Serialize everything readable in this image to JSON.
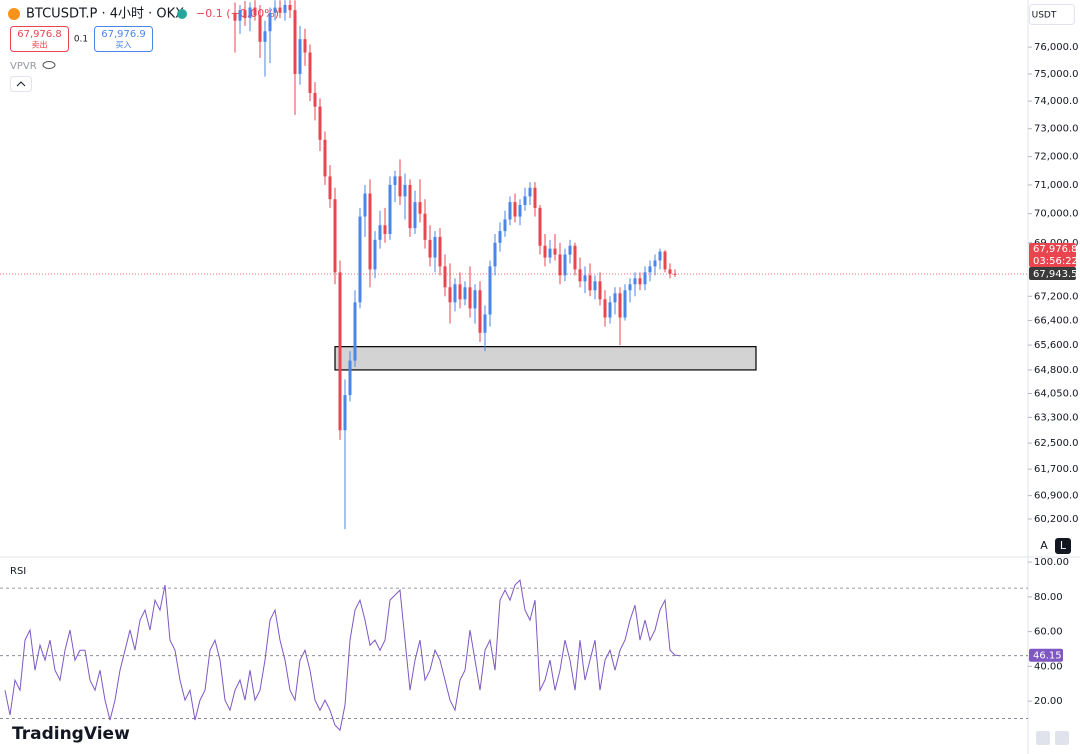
{
  "header": {
    "symbol_title": "BTCUSDT.P · 4小时 · OKX",
    "change": "−0.1 (−0.00%)",
    "sell_price": "67,976.8",
    "sell_label": "卖出",
    "quantity": "0.1",
    "buy_price": "67,976.9",
    "buy_label": "买入",
    "indicator": "VPVR",
    "currency": "USDT",
    "auto_button": "A",
    "log_button": "L",
    "brand": "TradingView"
  },
  "chart_data": [
    {
      "type": "candlestick",
      "log_scale": true,
      "up_color": "#4a86e8",
      "down_color": "#e8454f",
      "ylim": [
        59140,
        77790
      ],
      "yticks": [
        {
          "value": 76000,
          "label": "76,000.0"
        },
        {
          "value": 75000,
          "label": "75,000.0"
        },
        {
          "value": 74000,
          "label": "74,000.0"
        },
        {
          "value": 73000,
          "label": "73,000.0"
        },
        {
          "value": 72000,
          "label": "72,000.0"
        },
        {
          "value": 71000,
          "label": "71,000.0"
        },
        {
          "value": 70000,
          "label": "70,000.0"
        },
        {
          "value": 69000,
          "label": "69,000.0"
        },
        {
          "value": 67200,
          "label": "67,200.0"
        },
        {
          "value": 66400,
          "label": "66,400.0"
        },
        {
          "value": 65600,
          "label": "65,600.0"
        },
        {
          "value": 64800,
          "label": "64,800.0"
        },
        {
          "value": 64050,
          "label": "64,050.0"
        },
        {
          "value": 63300,
          "label": "63,300.0"
        },
        {
          "value": 62500,
          "label": "62,500.0"
        },
        {
          "value": 61700,
          "label": "61,700.0"
        },
        {
          "value": 60900,
          "label": "60,900.0"
        },
        {
          "value": 60200,
          "label": "60,200.0"
        }
      ],
      "open": [
        77300,
        77000,
        77400,
        77100,
        77500,
        77200,
        76200,
        76600,
        77300,
        77500,
        77300,
        77600,
        77400,
        75000,
        76300,
        75800,
        74300,
        73800,
        72600,
        71300,
        70500,
        68000,
        62900,
        64000,
        65100,
        67000,
        69900,
        70700,
        68100,
        69100,
        69600,
        69300,
        71000,
        71300,
        70600,
        71000,
        69500,
        70400,
        70000,
        69100,
        68500,
        69200,
        68200,
        67500,
        67000,
        67600,
        67100,
        67500,
        66800,
        67400,
        66000,
        66600,
        68200,
        69000,
        69400,
        69800,
        70400,
        69900,
        70300,
        70600,
        70900,
        70200,
        68900,
        68500,
        68800,
        68600,
        67900,
        68600,
        68900,
        68100,
        67700,
        67900,
        67400,
        67700,
        67100,
        66500,
        67000,
        67300,
        66500,
        67400,
        67600,
        67800,
        67600,
        68000,
        68200,
        68400,
        68700,
        68100,
        67950
      ],
      "high": [
        77700,
        77600,
        77750,
        77700,
        77780,
        77600,
        77000,
        77500,
        77780,
        77780,
        77780,
        77780,
        77780,
        76800,
        76700,
        76100,
        74700,
        74100,
        72900,
        71700,
        70900,
        68400,
        64500,
        65400,
        67400,
        70200,
        71000,
        71200,
        69400,
        70100,
        70200,
        71300,
        71500,
        71900,
        71400,
        71200,
        70800,
        71200,
        70500,
        69600,
        69400,
        69500,
        68600,
        68300,
        67800,
        68000,
        67700,
        68200,
        67600,
        67700,
        66900,
        68400,
        69300,
        69700,
        70100,
        70600,
        70700,
        70500,
        70900,
        71100,
        71100,
        70300,
        69300,
        69100,
        69300,
        69000,
        68800,
        69100,
        69000,
        68500,
        68200,
        68300,
        67900,
        68000,
        67400,
        67200,
        67500,
        67500,
        67600,
        67800,
        68000,
        68000,
        68200,
        68400,
        68600,
        68800,
        68750,
        68300,
        68100
      ],
      "low": [
        75800,
        76500,
        76800,
        76600,
        77000,
        75600,
        74900,
        75400,
        77000,
        77100,
        77000,
        77100,
        73500,
        74600,
        75300,
        74000,
        73300,
        72200,
        71000,
        70200,
        67600,
        62600,
        59900,
        63800,
        64900,
        66800,
        69200,
        67500,
        67800,
        68800,
        69000,
        69100,
        70400,
        70300,
        69800,
        69200,
        69300,
        69700,
        68800,
        68200,
        68000,
        67900,
        67200,
        66300,
        66700,
        66800,
        66900,
        66500,
        66300,
        65700,
        65400,
        66200,
        67900,
        68700,
        69200,
        69600,
        69700,
        69600,
        70100,
        70300,
        69900,
        68600,
        68200,
        68300,
        68400,
        67600,
        67700,
        68300,
        67900,
        67500,
        67300,
        67200,
        67100,
        66900,
        66200,
        66300,
        66600,
        65600,
        66400,
        67000,
        67200,
        67400,
        67400,
        67700,
        67900,
        68100,
        68000,
        67800,
        67850
      ],
      "close": [
        77000,
        77400,
        77100,
        77500,
        77200,
        76200,
        76600,
        77300,
        77500,
        77300,
        77600,
        77400,
        75000,
        76300,
        75800,
        74300,
        73800,
        72600,
        71300,
        70500,
        68000,
        62900,
        64000,
        65100,
        67000,
        69900,
        70700,
        68100,
        69100,
        69600,
        69300,
        71000,
        71300,
        70600,
        71000,
        69500,
        70400,
        70000,
        69100,
        68500,
        69200,
        68200,
        67500,
        67000,
        67600,
        67100,
        67500,
        66800,
        67400,
        66000,
        66600,
        68200,
        69000,
        69400,
        69800,
        70400,
        69900,
        70300,
        70600,
        70900,
        70200,
        68900,
        68500,
        68800,
        68600,
        67900,
        68600,
        68900,
        68100,
        67700,
        67900,
        67400,
        67700,
        67100,
        66500,
        67000,
        67300,
        66500,
        67400,
        67600,
        67800,
        67600,
        68000,
        68200,
        68400,
        68700,
        68100,
        67950,
        67943.5
      ],
      "zone": {
        "high": 65550,
        "low": 64800,
        "color": "#d3d3d3"
      },
      "price_tags": [
        {
          "value": 67976.8,
          "label": "67,976.8",
          "color": "#e8454f"
        },
        {
          "value": 67943.5,
          "label": "67,943.5",
          "color": "#3a3a3a"
        }
      ],
      "countdown": "03:56:22"
    },
    {
      "type": "line",
      "title": "RSI",
      "color": "#7e57c2",
      "ylim": [
        -10.4,
        101.2
      ],
      "yticks": [
        {
          "value": 20,
          "label": "20.00"
        },
        {
          "value": 40,
          "label": "40.00"
        },
        {
          "value": 60,
          "label": "60.00"
        },
        {
          "value": 80,
          "label": "80.00"
        },
        {
          "value": 100,
          "label": "100.00"
        }
      ],
      "band_levels": [
        85,
        10
      ],
      "values": [
        26.3,
        12.0,
        32.1,
        26.3,
        55.1,
        60.9,
        37.8,
        52.2,
        43.6,
        55.1,
        37.8,
        32.1,
        49.3,
        60.9,
        43.6,
        49.3,
        49.3,
        32.1,
        26.3,
        37.8,
        20.6,
        9.1,
        20.6,
        37.8,
        49.3,
        60.9,
        49.3,
        66.6,
        72.4,
        60.9,
        78.1,
        72.4,
        86.8,
        55.1,
        49.3,
        32.1,
        20.6,
        26.3,
        9.1,
        20.6,
        26.3,
        49.3,
        55.1,
        43.6,
        20.6,
        14.8,
        26.3,
        32.1,
        20.6,
        37.8,
        20.6,
        26.3,
        43.6,
        66.6,
        72.4,
        55.1,
        43.6,
        26.3,
        20.6,
        43.6,
        49.3,
        37.8,
        20.6,
        14.8,
        20.6,
        14.8,
        6.2,
        3.3,
        17.7,
        55.1,
        72.4,
        78.1,
        66.6,
        52.2,
        55.1,
        49.3,
        55.1,
        78.1,
        81.0,
        83.9,
        55.1,
        26.3,
        43.6,
        55.1,
        32.1,
        37.8,
        49.3,
        43.6,
        32.1,
        20.6,
        14.8,
        32.1,
        37.8,
        60.9,
        43.6,
        26.3,
        49.3,
        55.1,
        37.8,
        78.1,
        83.9,
        78.1,
        86.8,
        89.6,
        72.4,
        66.6,
        78.1,
        26.3,
        32.1,
        43.6,
        26.3,
        37.8,
        55.1,
        43.6,
        26.3,
        55.1,
        32.1,
        43.6,
        55.1,
        26.3,
        43.6,
        49.3,
        37.8,
        49.3,
        55.1,
        66.6,
        75.2,
        55.1,
        66.6,
        55.1,
        60.9,
        72.4,
        78.1,
        49.3,
        46.5,
        46.15
      ],
      "value_labels_last": 46.15
    }
  ]
}
